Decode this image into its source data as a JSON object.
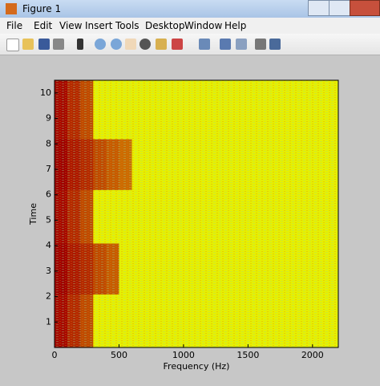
{
  "window": {
    "title": "Figure 1",
    "menu": [
      "File",
      "Edit",
      "View",
      "Insert",
      "Tools",
      "Desktop",
      "Window",
      "Help"
    ]
  },
  "chart_data": {
    "type": "heatmap",
    "xlabel": "Frequency (Hz)",
    "ylabel": "Time",
    "x_edges": [
      0,
      100,
      200,
      300,
      400,
      500,
      600,
      2200
    ],
    "y_edges": [
      0,
      2.1,
      4.1,
      6.2,
      8.2,
      10.5
    ],
    "z": [
      [
        0.9,
        0.8,
        0.7,
        0.2,
        0.2,
        0.2,
        0.2
      ],
      [
        0.95,
        0.85,
        0.8,
        0.7,
        0.65,
        0.2,
        0.2
      ],
      [
        0.9,
        0.8,
        0.7,
        0.2,
        0.2,
        0.2,
        0.2
      ],
      [
        0.95,
        0.85,
        0.8,
        0.7,
        0.65,
        0.6,
        0.2
      ],
      [
        0.9,
        0.8,
        0.7,
        0.2,
        0.2,
        0.2,
        0.2
      ]
    ],
    "colormap": "hot",
    "xlim": [
      0,
      2200
    ],
    "ylim": [
      0,
      10.5
    ],
    "xticks": [
      0,
      500,
      1000,
      1500,
      2000
    ],
    "yticks": [
      1,
      2,
      3,
      4,
      5,
      6,
      7,
      8,
      9,
      10
    ]
  }
}
